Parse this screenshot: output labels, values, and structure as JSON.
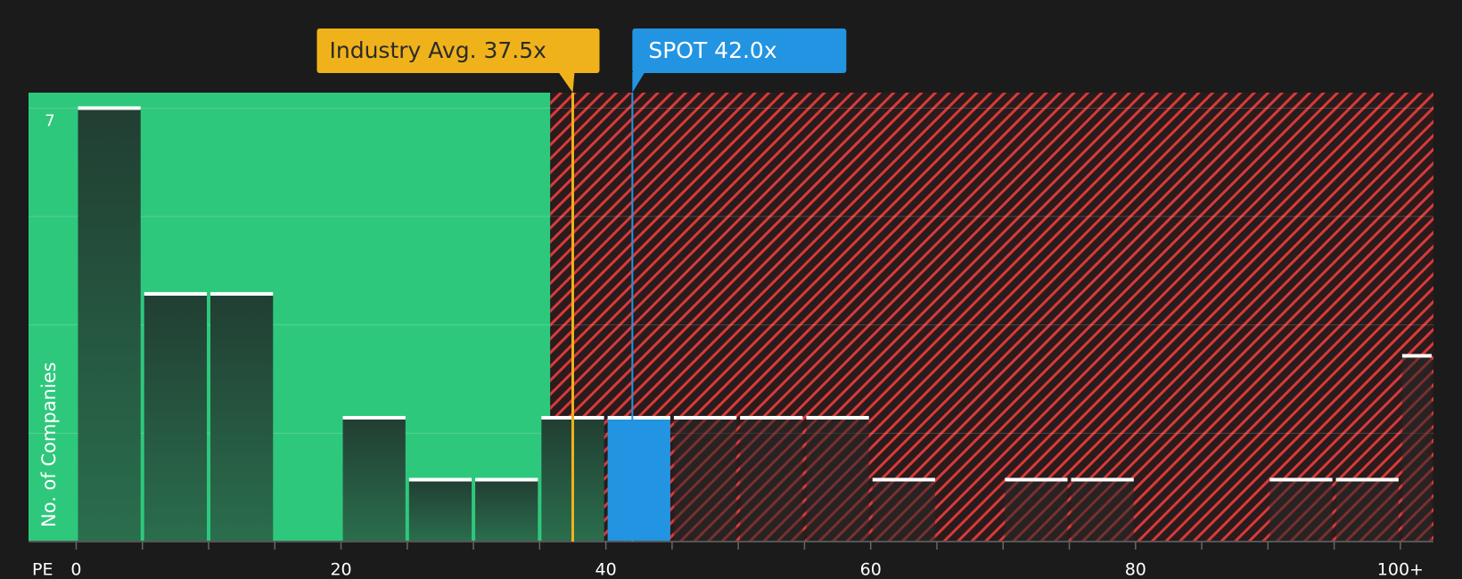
{
  "chart_data": {
    "type": "histogram",
    "x_label": "PE",
    "y_label": "No. of Companies",
    "bins": [
      0,
      5,
      10,
      15,
      20,
      25,
      30,
      35,
      40,
      45,
      50,
      55,
      60,
      65,
      70,
      75,
      80,
      85,
      90,
      95,
      100,
      102.5
    ],
    "values": [
      7,
      4,
      4,
      0,
      2,
      1,
      1,
      2,
      2,
      2,
      2,
      2,
      1,
      0,
      1,
      1,
      0,
      0,
      1,
      1,
      3
    ],
    "xlim": [
      -3.6,
      102.5
    ],
    "ylim": [
      0,
      7.25
    ],
    "xticks": [
      0,
      20,
      40,
      60,
      80,
      {
        "value": 100,
        "label": "100+"
      }
    ],
    "yticks": [
      7
    ],
    "gridlines": [
      1.75,
      3.5,
      5.25,
      7
    ],
    "fair_range_end": 35.8,
    "fair_color": "#2ec87c",
    "over_color": "#d83a3a",
    "annotations": [
      {
        "text": "Industry Avg. 37.5x",
        "value": 37.5,
        "color": "#f0b21b"
      },
      {
        "text": "SPOT 42.0x",
        "value": 42.0,
        "color": "#2394e1",
        "highlight": true
      }
    ]
  }
}
